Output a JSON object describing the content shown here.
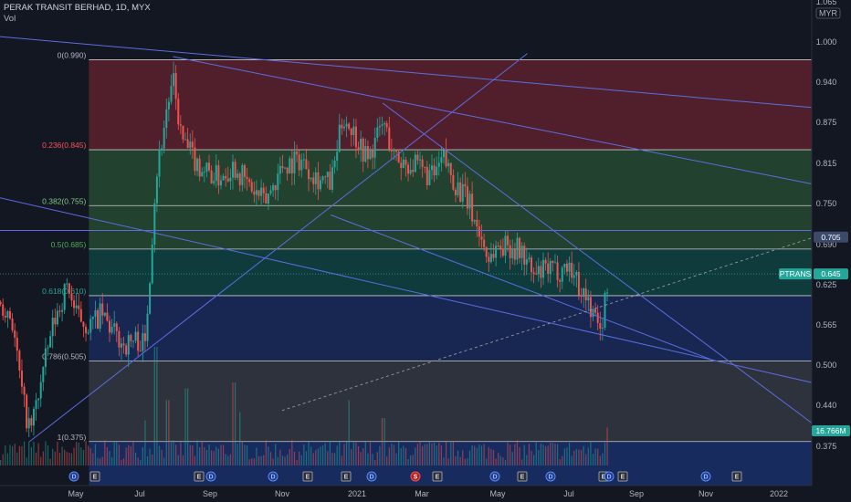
{
  "header": {
    "title": "PERAK TRANSIT BERHAD, 1D, MYX",
    "volume_label": "Vol"
  },
  "colors": {
    "background": "#131722",
    "up": "#26a69a",
    "down": "#ef5350",
    "trendline": "#5b6ee1",
    "fib_line": "#c9c9c9",
    "price_tag": "#26a69a",
    "level_tag": "#3b4a6b"
  },
  "axis": {
    "currency": "MYR",
    "top_partial": "1.065",
    "y_ticks": [
      "1.000",
      "0.940",
      "0.875",
      "0.815",
      "0.750",
      "0.690",
      "0.625",
      "0.565",
      "0.500",
      "0.440",
      "0.375"
    ],
    "x_ticks": [
      "May",
      "Jul",
      "Sep",
      "Nov",
      "2021",
      "Mar",
      "May",
      "Jul",
      "Sep",
      "Nov",
      "2022"
    ]
  },
  "tags": {
    "level": "0.705",
    "price_symbol": "PTRANS",
    "price": "0.645",
    "volume": "16.766M"
  },
  "events": [
    "D",
    "E",
    "E",
    "D",
    "D",
    "E",
    "E",
    "D",
    "S",
    "E",
    "D",
    "E",
    "D",
    "E",
    "D",
    "E",
    "D",
    "E"
  ],
  "chart_data": {
    "type": "candlestick",
    "symbol": "PTRANS",
    "title": "PERAK TRANSIT BERHAD, 1D, MYX",
    "ylim": [
      0.31,
      1.07
    ],
    "x_range": [
      "2020-04-01",
      "2022-02-15"
    ],
    "last_price": 0.645,
    "last_volume": "16.766M",
    "fibonacci": [
      {
        "ratio": "0",
        "price": 0.99,
        "label": "0(0.990)",
        "color": "#b2b5be",
        "fill": "#f23645"
      },
      {
        "ratio": "0.236",
        "price": 0.845,
        "label": "0.236(0.845)",
        "color": "#f7525f",
        "fill": "#4caf50"
      },
      {
        "ratio": "0.382",
        "price": 0.755,
        "label": "0.382(0.755)",
        "color": "#81c784",
        "fill": "#4caf50"
      },
      {
        "ratio": "0.5",
        "price": 0.685,
        "label": "0.5(0.685)",
        "color": "#4caf50",
        "fill": "#089981"
      },
      {
        "ratio": "0.618",
        "price": 0.61,
        "label": "0.618(0.610)",
        "color": "#26a69a",
        "fill": "#2962ff"
      },
      {
        "ratio": "0.786",
        "price": 0.505,
        "label": "0.786(0.505)",
        "color": "#b2b5be",
        "fill": "#787b86"
      },
      {
        "ratio": "1",
        "price": 0.375,
        "label": "1(0.375)",
        "color": "#b2b5be",
        "fill": "#2962ff"
      }
    ],
    "fib_range": [
      "2020-06-15",
      "2022-02-15"
    ],
    "price_path": [
      [
        "2020-04-01",
        0.6
      ],
      [
        "2020-04-10",
        0.58
      ],
      [
        "2020-04-20",
        0.44
      ],
      [
        "2020-04-26",
        0.39
      ],
      [
        "2020-05-05",
        0.47
      ],
      [
        "2020-05-15",
        0.56
      ],
      [
        "2020-05-22",
        0.6
      ],
      [
        "2020-05-28",
        0.63
      ],
      [
        "2020-06-03",
        0.58
      ],
      [
        "2020-06-15",
        0.56
      ],
      [
        "2020-06-25",
        0.58
      ],
      [
        "2020-07-05",
        0.55
      ],
      [
        "2020-07-15",
        0.53
      ],
      [
        "2020-07-25",
        0.54
      ],
      [
        "2020-08-01",
        0.53
      ],
      [
        "2020-08-05",
        0.65
      ],
      [
        "2020-08-10",
        0.8
      ],
      [
        "2020-08-15",
        0.86
      ],
      [
        "2020-08-20",
        0.92
      ],
      [
        "2020-08-25",
        0.95
      ],
      [
        "2020-09-01",
        0.86
      ],
      [
        "2020-09-15",
        0.82
      ],
      [
        "2020-10-01",
        0.8
      ],
      [
        "2020-10-15",
        0.82
      ],
      [
        "2020-10-30",
        0.78
      ],
      [
        "2020-11-10",
        0.76
      ],
      [
        "2020-11-25",
        0.82
      ],
      [
        "2020-12-10",
        0.83
      ],
      [
        "2020-12-25",
        0.8
      ],
      [
        "2021-01-05",
        0.79
      ],
      [
        "2021-01-15",
        0.9
      ],
      [
        "2021-01-25",
        0.87
      ],
      [
        "2021-02-05",
        0.83
      ],
      [
        "2021-02-18",
        0.89
      ],
      [
        "2021-02-28",
        0.83
      ],
      [
        "2021-03-15",
        0.82
      ],
      [
        "2021-04-01",
        0.8
      ],
      [
        "2021-04-10",
        0.83
      ],
      [
        "2021-04-20",
        0.79
      ],
      [
        "2021-05-01",
        0.76
      ],
      [
        "2021-05-10",
        0.71
      ],
      [
        "2021-05-18",
        0.67
      ],
      [
        "2021-05-25",
        0.69
      ],
      [
        "2021-06-05",
        0.69
      ],
      [
        "2021-06-15",
        0.68
      ],
      [
        "2021-06-25",
        0.64
      ],
      [
        "2021-07-05",
        0.65
      ],
      [
        "2021-07-15",
        0.65
      ],
      [
        "2021-07-25",
        0.66
      ],
      [
        "2021-08-01",
        0.63
      ],
      [
        "2021-08-10",
        0.6
      ],
      [
        "2021-08-18",
        0.56
      ],
      [
        "2021-08-22",
        0.57
      ],
      [
        "2021-08-27",
        0.645
      ]
    ],
    "trendlines": [
      {
        "from": [
          "2020-03-15",
          1.03
        ],
        "to": [
          "2022-02-15",
          0.913
        ]
      },
      {
        "from": [
          "2020-08-25",
          0.995
        ],
        "to": [
          "2022-02-15",
          0.79
        ]
      },
      {
        "from": [
          "2020-04-26",
          0.375
        ],
        "to": [
          "2021-06-20",
          1.0
        ]
      },
      {
        "from": [
          "2021-02-18",
          0.92
        ],
        "to": [
          "2022-02-15",
          0.405
        ]
      },
      {
        "from": [
          "2020-03-15",
          0.775
        ],
        "to": [
          "2022-02-15",
          0.47
        ]
      },
      {
        "from": [
          "2021-01-05",
          0.74
        ],
        "to": [
          "2021-11-25",
          0.505
        ]
      },
      {
        "from": [
          "2020-03-15",
          0.715
        ],
        "to": [
          "2022-02-15",
          0.715
        ]
      }
    ],
    "projection": {
      "from": [
        "2020-11-25",
        0.425
      ],
      "to": [
        "2022-02-15",
        0.703
      ]
    },
    "volume_spikes": [
      [
        "2020-08-01",
        0.38
      ],
      [
        "2020-08-10",
        1.0
      ],
      [
        "2020-08-20",
        0.55
      ],
      [
        "2020-09-05",
        0.65
      ],
      [
        "2020-10-15",
        0.7
      ],
      [
        "2020-10-20",
        0.45
      ],
      [
        "2021-01-20",
        0.55
      ],
      [
        "2021-02-18",
        0.4
      ],
      [
        "2021-08-27",
        0.32
      ]
    ]
  }
}
